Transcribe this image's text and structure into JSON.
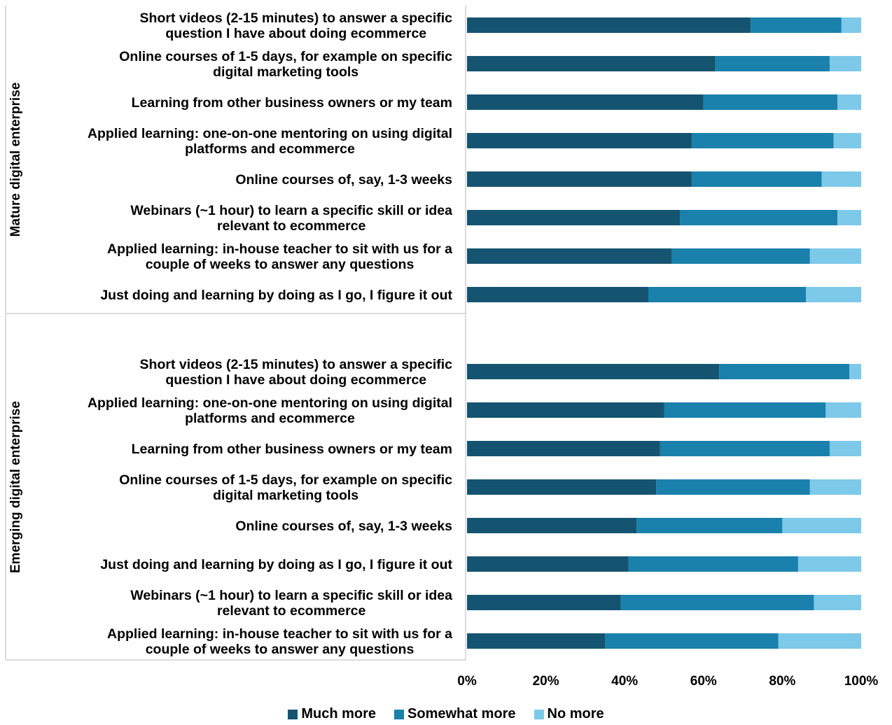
{
  "chart_data": {
    "type": "bar",
    "orientation": "horizontal",
    "stacked": "percent",
    "xlim": [
      0,
      100
    ],
    "x_ticks": [
      "0%",
      "20%",
      "40%",
      "60%",
      "80%",
      "100%"
    ],
    "legend_position": "bottom",
    "groups": [
      {
        "name": "Mature digital enterprise",
        "categories": [
          "Short videos (2-15 minutes) to answer a specific question I have about doing ecommerce",
          "Online courses of 1-5 days, for example on specific digital marketing tools",
          "Learning from other business owners or my team",
          "Applied learning: one-on-one mentoring on using digital platforms and ecommerce",
          "Online courses of, say, 1-3 weeks",
          "Webinars (~1 hour) to learn a specific skill or idea relevant to ecommerce",
          "Applied learning: in-house teacher to sit with us for a couple of weeks to answer any questions",
          "Just doing and learning by doing as I go, I figure it out"
        ],
        "label_lines": [
          [
            "Short videos (2-15 minutes) to answer a specific",
            "question I have about doing ecommerce"
          ],
          [
            "Online courses of 1-5 days, for example on specific",
            "digital marketing tools"
          ],
          [
            "Learning from other business owners or my team"
          ],
          [
            "Applied learning: one-on-one mentoring on using digital",
            "platforms and ecommerce"
          ],
          [
            "Online courses of, say, 1-3 weeks"
          ],
          [
            "Webinars (~1 hour) to learn a specific skill or idea",
            "relevant to ecommerce"
          ],
          [
            "Applied learning: in-house teacher to sit with us for a",
            "couple of weeks to answer any questions"
          ],
          [
            "Just doing and learning by doing as I go, I figure it out"
          ]
        ],
        "series": [
          {
            "name": "Much more",
            "values": [
              72,
              63,
              60,
              57,
              57,
              54,
              52,
              46
            ]
          },
          {
            "name": "Somewhat more",
            "values": [
              23,
              29,
              34,
              36,
              33,
              40,
              35,
              40
            ]
          },
          {
            "name": "No more",
            "values": [
              5,
              8,
              6,
              7,
              10,
              6,
              13,
              14
            ]
          }
        ]
      },
      {
        "name": "Emerging digital enterprise",
        "categories": [
          "Short videos (2-15 minutes) to answer a specific question I have about doing ecommerce",
          "Applied learning: one-on-one mentoring on using digital platforms and ecommerce",
          "Learning from other business owners or my team",
          "Online courses of 1-5 days, for example on specific digital marketing tools",
          "Online courses of, say, 1-3 weeks",
          "Just doing and learning by doing as I go, I figure it out",
          "Webinars (~1 hour) to learn a specific skill or idea relevant to ecommerce",
          "Applied learning: in-house teacher to sit with us for a couple of weeks to answer any questions"
        ],
        "label_lines": [
          [
            "Short videos (2-15 minutes) to answer a specific",
            "question I have about doing ecommerce"
          ],
          [
            "Applied learning: one-on-one mentoring on using digital",
            "platforms and ecommerce"
          ],
          [
            "Learning from other business owners or my team"
          ],
          [
            "Online courses of 1-5 days, for example on specific",
            "digital marketing tools"
          ],
          [
            "Online courses of, say, 1-3 weeks"
          ],
          [
            "Just doing and learning by doing as I go, I figure it out"
          ],
          [
            "Webinars (~1 hour) to learn a specific skill or idea",
            "relevant to ecommerce"
          ],
          [
            "Applied learning: in-house teacher to sit with us for a",
            "couple of weeks to answer any questions"
          ]
        ],
        "series": [
          {
            "name": "Much more",
            "values": [
              64,
              50,
              49,
              48,
              43,
              41,
              39,
              35
            ]
          },
          {
            "name": "Somewhat more",
            "values": [
              33,
              41,
              43,
              39,
              37,
              43,
              49,
              44
            ]
          },
          {
            "name": "No more",
            "values": [
              3,
              9,
              8,
              13,
              20,
              16,
              12,
              21
            ]
          }
        ]
      }
    ],
    "series_colors": [
      "#155470",
      "#1a80ac",
      "#7dc9ea"
    ],
    "legend": [
      "Much more",
      "Somewhat more",
      "No more"
    ]
  }
}
